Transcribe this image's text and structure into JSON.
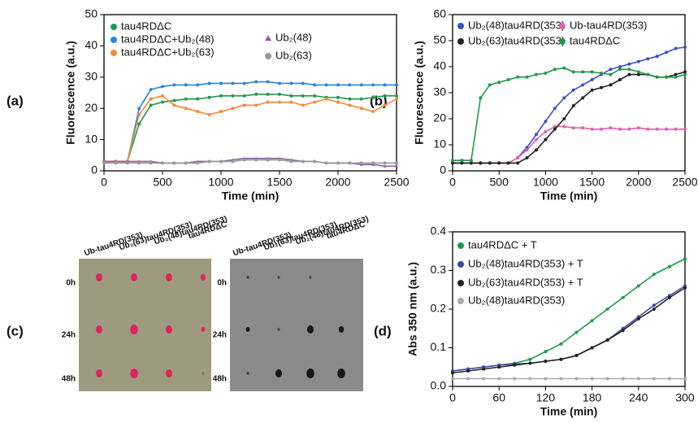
{
  "chart_data": [
    {
      "type": "line",
      "panel_label": "(a)",
      "xlabel": "Time  (min)",
      "ylabel": "Fluorescence (a.u.)",
      "x": [
        0,
        100,
        200,
        300,
        400,
        500,
        600,
        700,
        800,
        900,
        1000,
        1100,
        1200,
        1300,
        1400,
        1500,
        1600,
        1700,
        1800,
        1900,
        2000,
        2100,
        2200,
        2300,
        2400,
        2500
      ],
      "xlim": [
        0,
        2500
      ],
      "xticks": [
        0,
        500,
        1000,
        1500,
        2000,
        2500
      ],
      "ylim": [
        0,
        50
      ],
      "yticks": [
        0,
        10,
        20,
        30,
        40,
        50
      ],
      "series": [
        {
          "name": "tau4RDΔC",
          "color": "#1f9a4b",
          "marker": "circle",
          "values": [
            3,
            3,
            3,
            15,
            21,
            22,
            22.5,
            23,
            23,
            23.5,
            24,
            24,
            24,
            24.5,
            24.5,
            24.5,
            24,
            24,
            24,
            23.5,
            23.5,
            23,
            23,
            23.5,
            24,
            24
          ]
        },
        {
          "name": "tau4RDΔC+Ub₂(48)",
          "color": "#2b86d8",
          "marker": "circle",
          "values": [
            3,
            3,
            3,
            20,
            26,
            27,
            27.5,
            27.5,
            27.5,
            28,
            28,
            28,
            28,
            28.5,
            28.5,
            28,
            28,
            28,
            27.5,
            27.5,
            27.5,
            27.5,
            27.5,
            27.5,
            27.5,
            27.5
          ]
        },
        {
          "name": "tau4RDΔC+Ub₂(63)",
          "color": "#f5893a",
          "marker": "circle",
          "values": [
            3,
            3,
            3,
            18,
            23,
            24,
            21,
            20,
            19,
            18,
            19,
            20,
            21,
            21,
            22,
            22,
            22,
            21,
            22,
            23,
            22,
            21,
            20,
            19,
            21,
            23
          ]
        },
        {
          "name": "Ub₂(48)",
          "color": "#8e5ca8",
          "marker": "triangle",
          "values": [
            3,
            3,
            3,
            3,
            3,
            2.5,
            2.5,
            2.5,
            3,
            3,
            3,
            3.5,
            4,
            4,
            4,
            4,
            3.5,
            3,
            3,
            2.5,
            2.5,
            2.5,
            2,
            2,
            1.5,
            1.5
          ]
        },
        {
          "name": "Ub₂(63)",
          "color": "#999999",
          "marker": "circle",
          "values": [
            2.5,
            2.5,
            2.5,
            2.5,
            2.5,
            2.5,
            2.5,
            2.5,
            2.5,
            3,
            3,
            3,
            3.5,
            3.5,
            3.5,
            3.5,
            3,
            3,
            3,
            2.5,
            2.5,
            2.5,
            2.5,
            2.5,
            2.5,
            2.5
          ]
        }
      ]
    },
    {
      "type": "line",
      "panel_label": "(b)",
      "xlabel": "Time  (min)",
      "ylabel": "Fluorescence (a.u.)",
      "x": [
        0,
        100,
        200,
        300,
        400,
        500,
        600,
        700,
        800,
        900,
        1000,
        1100,
        1200,
        1300,
        1400,
        1500,
        1600,
        1700,
        1800,
        1900,
        2000,
        2100,
        2200,
        2300,
        2400,
        2500
      ],
      "xlim": [
        0,
        2500
      ],
      "xticks": [
        0,
        500,
        1000,
        1500,
        2000,
        2500
      ],
      "ylim": [
        0,
        60
      ],
      "yticks": [
        0,
        10,
        20,
        30,
        40,
        50,
        60
      ],
      "series": [
        {
          "name": "Ub₂(48)tau4RD(353)",
          "color": "#3b4fc4",
          "marker": "circle",
          "values": [
            3,
            3,
            3,
            3,
            3,
            3,
            3,
            5,
            9,
            14,
            19,
            24,
            28,
            31,
            33,
            35,
            37,
            39,
            40,
            41,
            42,
            43,
            44,
            45.5,
            47,
            47.5
          ]
        },
        {
          "name": "Ub-tau4RD(353)",
          "color": "#e060b0",
          "marker": "circle",
          "values": [
            3,
            3,
            3,
            3,
            3,
            3,
            3,
            5,
            8,
            12,
            15,
            17,
            17,
            16.5,
            16.5,
            16,
            16,
            16.5,
            16,
            16,
            16.5,
            16,
            16,
            16,
            16,
            16
          ]
        },
        {
          "name": "Ub₂(63)tau4RD(353)",
          "color": "#222222",
          "marker": "circle",
          "values": [
            3,
            3,
            3,
            3,
            3,
            3,
            3,
            3,
            5,
            8,
            12,
            16,
            20,
            25,
            28,
            31,
            32,
            33,
            35,
            37,
            37,
            37,
            36,
            36,
            37,
            38
          ]
        },
        {
          "name": "tau4RDΔC",
          "color": "#1f9a4b",
          "marker": "circle",
          "values": [
            4,
            4,
            4,
            28,
            33,
            34,
            35,
            36,
            36,
            37,
            37.5,
            39,
            39.5,
            38,
            38,
            38,
            37.5,
            37,
            39,
            39,
            38,
            37,
            36,
            36,
            36,
            37
          ]
        }
      ]
    },
    {
      "type": "line",
      "panel_label": "(d)",
      "xlabel": "Time (min)",
      "ylabel": "Abs 350 nm (a.u.)",
      "x": [
        0,
        20,
        40,
        60,
        80,
        100,
        120,
        140,
        160,
        180,
        200,
        220,
        240,
        260,
        280,
        300
      ],
      "xlim": [
        0,
        300
      ],
      "xticks": [
        0,
        60,
        120,
        180,
        240,
        300
      ],
      "ylim": [
        0,
        0.4
      ],
      "yticks": [
        {
          "value": 0,
          "label": "0.0"
        },
        0.1,
        0.2,
        0.3,
        0.4
      ],
      "series": [
        {
          "name": "tau4RDΔC  + T",
          "color": "#1f9a4b",
          "marker": "circle",
          "values": [
            0.04,
            0.045,
            0.05,
            0.055,
            0.06,
            0.07,
            0.09,
            0.11,
            0.14,
            0.17,
            0.2,
            0.23,
            0.26,
            0.29,
            0.31,
            0.33
          ]
        },
        {
          "name": "Ub₂(48)tau4RD(353) + T",
          "color": "#3a4aa8",
          "marker": "circle",
          "values": [
            0.04,
            0.045,
            0.05,
            0.055,
            0.058,
            0.06,
            0.065,
            0.07,
            0.08,
            0.1,
            0.12,
            0.15,
            0.18,
            0.21,
            0.235,
            0.26
          ]
        },
        {
          "name": "Ub₂(63)tau4RD(353) + T",
          "color": "#222222",
          "marker": "circle",
          "values": [
            0.035,
            0.04,
            0.045,
            0.05,
            0.055,
            0.06,
            0.065,
            0.07,
            0.08,
            0.1,
            0.12,
            0.145,
            0.175,
            0.2,
            0.23,
            0.255
          ]
        },
        {
          "name": "Ub₂(48)tau4RD(353)",
          "color": "#aaaaaa",
          "marker": "circle",
          "values": [
            0.02,
            0.02,
            0.02,
            0.02,
            0.02,
            0.02,
            0.02,
            0.02,
            0.02,
            0.02,
            0.02,
            0.02,
            0.02,
            0.02,
            0.02,
            0.02
          ]
        }
      ]
    }
  ],
  "blot_panel": {
    "panel_label": "(c)",
    "columns": [
      "Ub-tau4RD(353)",
      "Ub₂(63)tau4RD(353)",
      "Ub₂(48)tau4RD(353)",
      "tau4RDΔC"
    ],
    "rows": [
      "0h",
      "24h",
      "48h"
    ],
    "columns_right": [
      "Ub-tau4RD(353)",
      "Ub₂(63)tau4RD(353)",
      "Ub₂(48)tau4RD(353)",
      "tau4RDΔC"
    ],
    "rows_right": [
      "0h",
      "24h",
      "48h"
    ]
  }
}
